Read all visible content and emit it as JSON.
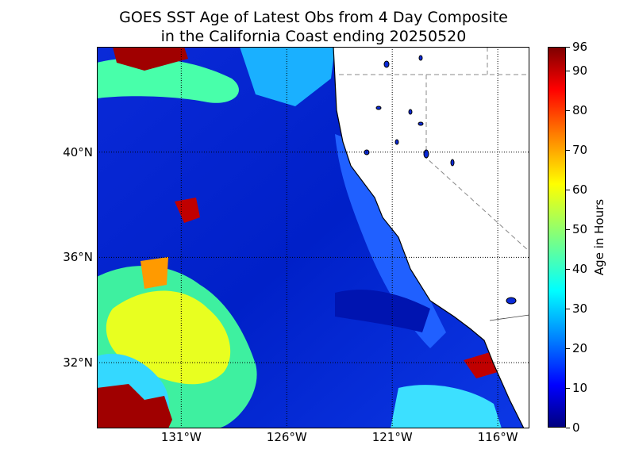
{
  "title": {
    "line1": "GOES SST Age of Latest Obs from 4 Day Composite",
    "line2": "in the California Coast ending 20250520"
  },
  "map": {
    "lon_range": [
      -135,
      -114.5
    ],
    "lat_range": [
      29.5,
      44.0
    ],
    "lon_ticks": [
      {
        "value": -131,
        "label": "131°W"
      },
      {
        "value": -126,
        "label": "126°W"
      },
      {
        "value": -121,
        "label": "121°W"
      },
      {
        "value": -116,
        "label": "116°W"
      }
    ],
    "lat_ticks": [
      {
        "value": 40,
        "label": "40°N"
      },
      {
        "value": 36,
        "label": "36°N"
      },
      {
        "value": 32,
        "label": "32°N"
      }
    ],
    "colors": {
      "land": "#ffffff",
      "coastline": "#000000",
      "gridline": "#000000",
      "border": "#888888"
    }
  },
  "colorbar": {
    "label": "Age in Hours",
    "min": 0,
    "max": 96,
    "colormap": "jet",
    "ticks": [
      "0",
      "10",
      "20",
      "30",
      "40",
      "50",
      "60",
      "70",
      "80",
      "90",
      "96"
    ]
  }
}
